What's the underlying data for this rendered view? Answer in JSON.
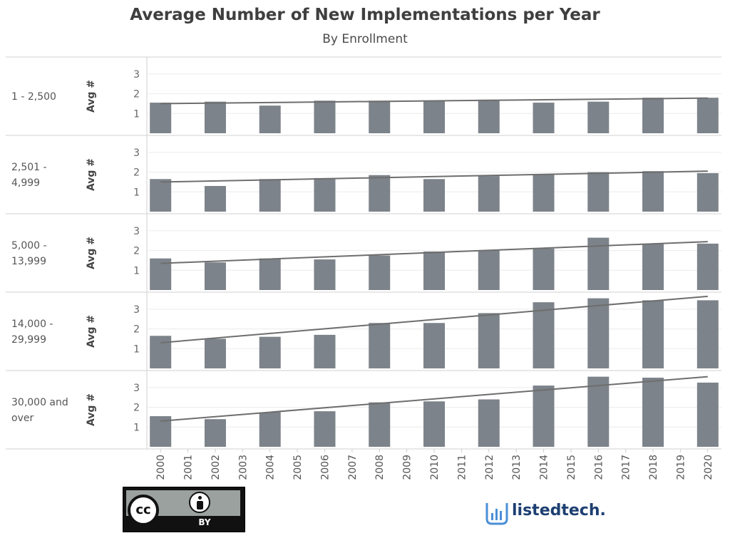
{
  "title": "Average Number of New Implementations per Year",
  "subtitle": "By Enrollment",
  "chart_data": {
    "type": "bar",
    "title": "Average Number of New Implementations per Year",
    "subtitle": "By Enrollment",
    "ylabel": "Avg #",
    "ylim": [
      0,
      3.5
    ],
    "yticks": [
      "1",
      "2",
      "3"
    ],
    "x_tick_labels": [
      "2000",
      "2001",
      "2002",
      "2003",
      "2004",
      "2005",
      "2006",
      "2007",
      "2008",
      "2009",
      "2010",
      "2011",
      "2012",
      "2013",
      "2014",
      "2015",
      "2016",
      "2017",
      "2018",
      "2019",
      "2020"
    ],
    "categories": [
      "2000",
      "2002",
      "2004",
      "2006",
      "2008",
      "2010",
      "2012",
      "2014",
      "2016",
      "2018",
      "2020"
    ],
    "trendline": true,
    "bar_color": "#7d838a",
    "trend_color": "#6e6e6e",
    "panels": [
      {
        "label": "1 - 2,500",
        "values": [
          1.55,
          1.6,
          1.4,
          1.65,
          1.65,
          1.65,
          1.7,
          1.55,
          1.6,
          1.8,
          1.8
        ],
        "trend": [
          1.5,
          1.78
        ]
      },
      {
        "label": "2,501 -\n4,999",
        "values": [
          1.65,
          1.3,
          1.65,
          1.7,
          1.85,
          1.65,
          1.8,
          1.9,
          2.0,
          2.05,
          1.95
        ],
        "trend": [
          1.5,
          2.05
        ]
      },
      {
        "label": "5,000 -\n13,999",
        "values": [
          1.6,
          1.4,
          1.6,
          1.55,
          1.75,
          1.95,
          2.0,
          2.1,
          2.65,
          2.35,
          2.35
        ],
        "trend": [
          1.35,
          2.45
        ]
      },
      {
        "label": "14,000 -\n29,999",
        "values": [
          1.65,
          1.5,
          1.6,
          1.7,
          2.3,
          2.3,
          2.8,
          3.35,
          3.55,
          3.45,
          3.45
        ],
        "trend": [
          1.3,
          3.65
        ]
      },
      {
        "label": "30,000 and\nover",
        "values": [
          1.55,
          1.4,
          1.75,
          1.8,
          2.25,
          2.3,
          2.4,
          3.1,
          3.55,
          3.5,
          3.25
        ],
        "trend": [
          1.3,
          3.55
        ]
      }
    ]
  },
  "license": {
    "cc_text": "cc",
    "by_text": "BY"
  },
  "logo": {
    "text": "listedtech."
  }
}
